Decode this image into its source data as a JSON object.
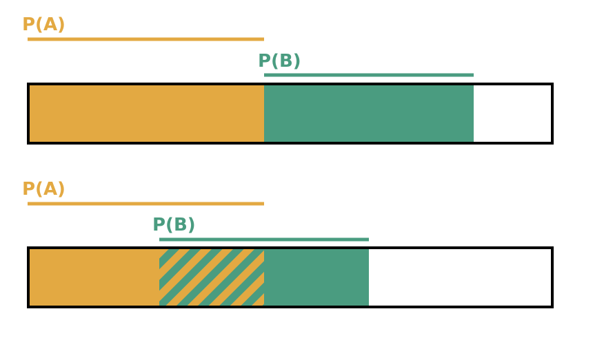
{
  "colors": {
    "a": "#E3A942",
    "b": "#4A9C80",
    "outline": "#000000",
    "background": "#FFFFFF"
  },
  "panels": [
    {
      "label_a": "P(A)",
      "label_b": "P(B)",
      "a": [
        0,
        0.45
      ],
      "b": [
        0.45,
        0.85
      ],
      "overlap": null
    },
    {
      "label_a": "P(A)",
      "label_b": "P(B)",
      "a": [
        0,
        0.45
      ],
      "b": [
        0.25,
        0.65
      ],
      "overlap": [
        0.25,
        0.45
      ]
    }
  ]
}
